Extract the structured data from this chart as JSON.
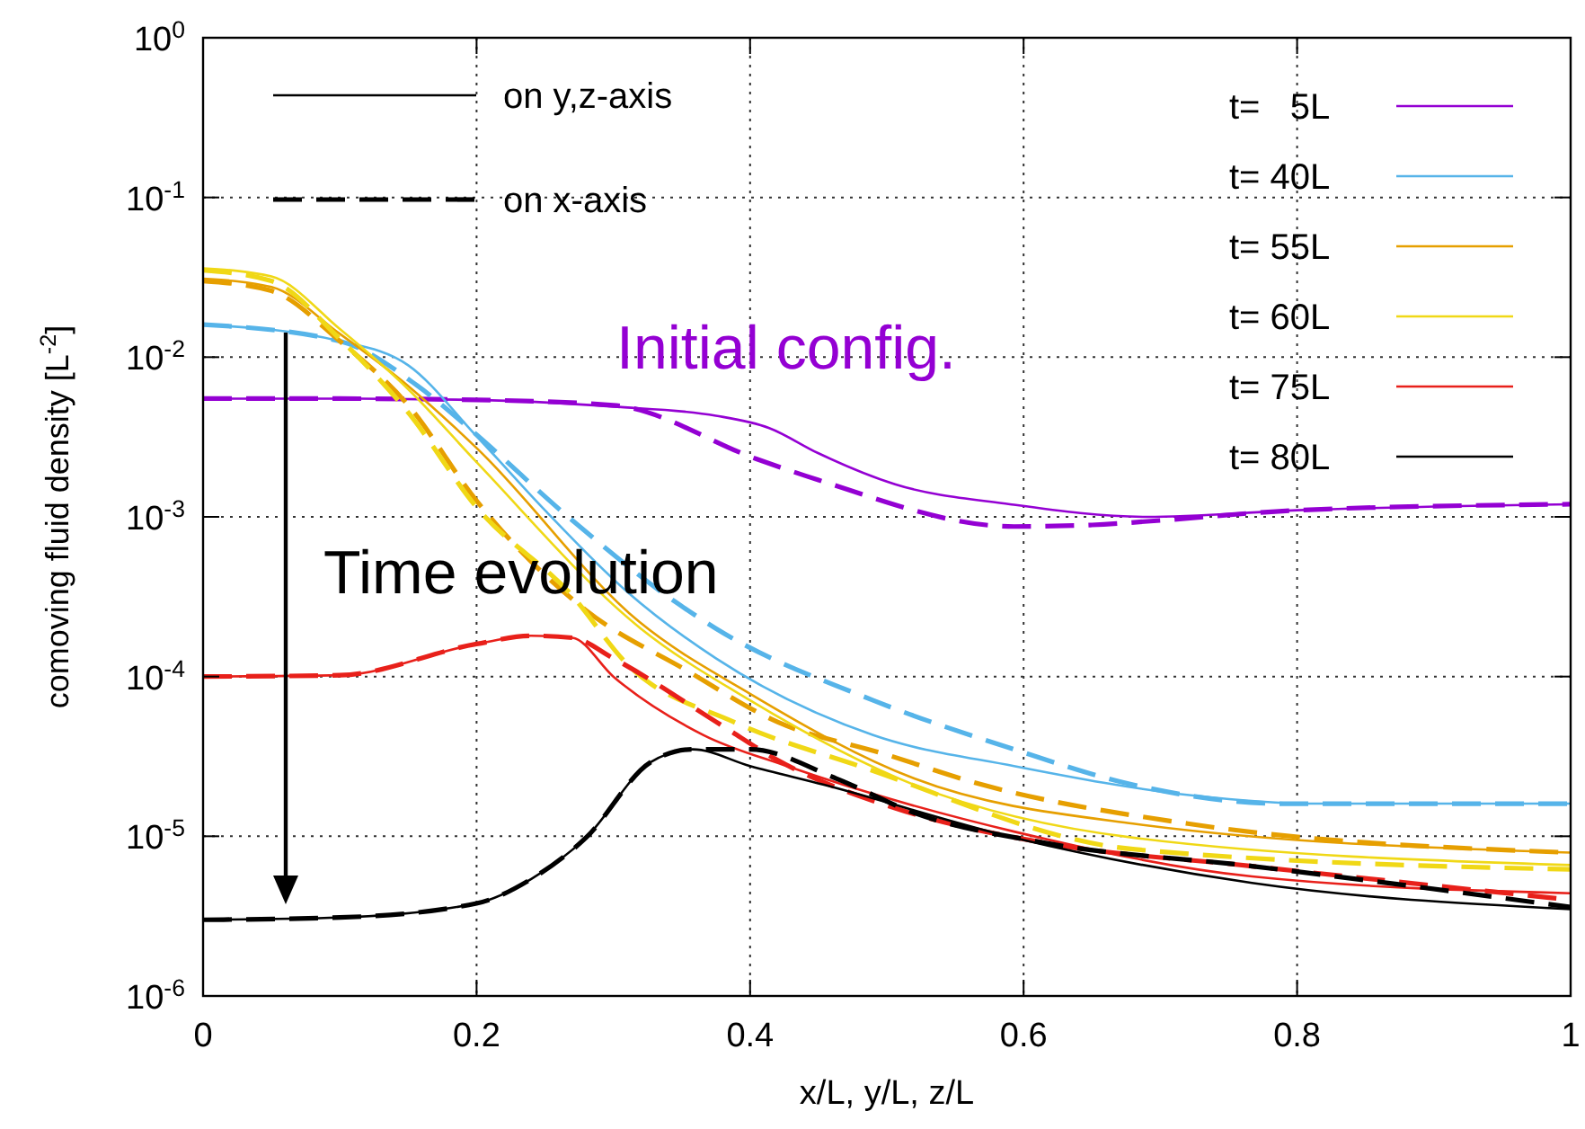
{
  "chart_data": {
    "type": "line",
    "xlabel": "x/L, y/L, z/L",
    "ylabel": "comoving fluid density [L$^{-2}$]",
    "xlim": [
      0,
      1
    ],
    "xticks": [
      0,
      0.2,
      0.4,
      0.6,
      0.8,
      1
    ],
    "ylim": [
      1e-06,
      1
    ],
    "yticks": [
      {
        "value": 1e-06,
        "label": "10$^{-6}$"
      },
      {
        "value": 1e-05,
        "label": "10$^{-5}$"
      },
      {
        "value": 0.0001,
        "label": "10$^{-4}$"
      },
      {
        "value": 0.001,
        "label": "10$^{-3}$"
      },
      {
        "value": 0.01,
        "label": "10$^{-2}$"
      },
      {
        "value": 0.1,
        "label": "10$^{-1}$"
      },
      {
        "value": 1,
        "label": "10$^{0}$"
      }
    ],
    "log": "y",
    "grid": true,
    "legend": "top right",
    "marker": "none",
    "annotations": [
      "on y,z-axis",
      "on x-axis",
      "Initial config.",
      "Time evolution"
    ],
    "series": [
      {
        "name": "t=   5L",
        "color": "#9400d3",
        "line_style": "solid",
        "x": [
          0,
          0.1,
          0.2,
          0.3,
          0.375,
          0.414,
          0.45,
          0.506,
          0.59,
          0.69,
          0.8,
          1
        ],
        "values": [
          0.0055,
          0.0055,
          0.0054,
          0.0049,
          0.0043,
          0.0036,
          0.0025,
          0.0016,
          0.0012,
          0.001,
          0.0011,
          0.0012
        ]
      },
      {
        "color": "#9400d3",
        "line_style": "dashed",
        "x": [
          0,
          0.1,
          0.2,
          0.3,
          0.405,
          0.45,
          0.593,
          0.65,
          0.7,
          0.8,
          1
        ],
        "values": [
          0.0055,
          0.0055,
          0.0054,
          0.005,
          0.0023,
          0.0017,
          0.00087,
          0.00089,
          0.00095,
          0.0011,
          0.0012
        ]
      },
      {
        "name": "t= 40L",
        "color": "#56b4e9",
        "line_style": "solid",
        "x": [
          0,
          0.1,
          0.15,
          0.2,
          0.25,
          0.31,
          0.375,
          0.49,
          0.593,
          0.724,
          0.81,
          1
        ],
        "values": [
          0.016,
          0.0126,
          0.0089,
          0.0032,
          0.0011,
          0.00034,
          0.00013,
          4.3e-05,
          2.75e-05,
          1.8e-05,
          1.6e-05,
          1.6e-05
        ]
      },
      {
        "color": "#56b4e9",
        "line_style": "dashed",
        "x": [
          0,
          0.1,
          0.157,
          0.196,
          0.267,
          0.345,
          0.375,
          0.49,
          0.593,
          0.68,
          0.79,
          1
        ],
        "values": [
          0.016,
          0.0126,
          0.0066,
          0.0035,
          0.001,
          0.000295,
          0.0002,
          7.1e-05,
          3.5e-05,
          2.1e-05,
          1.6e-05,
          1.6e-05
        ]
      },
      {
        "name": "t= 55L",
        "color": "#e69f00",
        "line_style": "solid",
        "x": [
          0,
          0.05,
          0.1,
          0.15,
          0.2,
          0.319,
          0.4,
          0.52,
          0.68,
          1
        ],
        "values": [
          0.031,
          0.0275,
          0.014,
          0.0066,
          0.0027,
          0.00022,
          7.8e-05,
          2.3e-05,
          1.2e-05,
          7.9e-06
        ]
      },
      {
        "color": "#e69f00",
        "line_style": "dashed",
        "x": [
          0,
          0.05,
          0.1,
          0.15,
          0.2,
          0.28,
          0.353,
          0.42,
          0.497,
          0.57,
          0.72,
          1
        ],
        "values": [
          0.03,
          0.026,
          0.0126,
          0.005,
          0.00126,
          0.00026,
          0.00011,
          5.2e-05,
          3.3e-05,
          2.1e-05,
          1.2e-05,
          7.9e-06
        ]
      },
      {
        "name": "t= 60L",
        "color": "#f0d816",
        "line_style": "solid",
        "x": [
          0,
          0.05,
          0.1,
          0.15,
          0.2,
          0.32,
          0.4,
          0.52,
          0.68,
          1
        ],
        "values": [
          0.036,
          0.032,
          0.015,
          0.0063,
          0.0022,
          0.0002,
          7.1e-05,
          2.1e-05,
          9.8e-06,
          6.6e-06
        ]
      },
      {
        "color": "#f0d816",
        "line_style": "dashed",
        "x": [
          0,
          0.05,
          0.1,
          0.15,
          0.2,
          0.27,
          0.31,
          0.388,
          0.48,
          0.68,
          1
        ],
        "values": [
          0.035,
          0.03,
          0.013,
          0.0045,
          0.00115,
          0.00032,
          0.00012,
          5.2e-05,
          2.75e-05,
          8.3e-06,
          6.2e-06
        ]
      },
      {
        "name": "t= 75L",
        "color": "#e8201a",
        "line_style": "solid",
        "x": [
          0,
          0.1,
          0.2,
          0.24,
          0.27,
          0.3,
          0.366,
          0.427,
          0.593,
          0.767,
          1
        ],
        "values": [
          0.0001,
          0.000102,
          0.00016,
          0.00018,
          0.000175,
          0.0001,
          4.3e-05,
          2.75e-05,
          1.07e-05,
          5.6e-06,
          4.4e-06
        ]
      },
      {
        "color": "#e8201a",
        "line_style": "dashed",
        "x": [
          0,
          0.1,
          0.2,
          0.24,
          0.27,
          0.3,
          0.38,
          0.42,
          0.506,
          0.615,
          0.767,
          1
        ],
        "values": [
          0.0001,
          0.000102,
          0.00016,
          0.00018,
          0.000175,
          0.00013,
          4.9e-05,
          3e-05,
          1.5e-05,
          9.1e-06,
          6.5e-06,
          4e-06
        ]
      },
      {
        "name": "t= 80L",
        "color": "#000000",
        "line_style": "solid",
        "x": [
          0,
          0.1,
          0.2,
          0.24,
          0.28,
          0.327,
          0.358,
          0.4,
          0.454,
          0.593,
          0.767,
          1
        ],
        "values": [
          3e-06,
          3.1e-06,
          3.8e-06,
          5.4e-06,
          9.8e-06,
          2.9e-05,
          3.5e-05,
          2.75e-05,
          2.1e-05,
          9.8e-06,
          5.1e-06,
          3.5e-06
        ]
      },
      {
        "color": "#000000",
        "line_style": "dashed",
        "x": [
          0,
          0.1,
          0.2,
          0.24,
          0.28,
          0.327,
          0.358,
          0.4,
          0.463,
          0.52,
          0.615,
          0.767,
          1
        ],
        "values": [
          3e-06,
          3.1e-06,
          3.8e-06,
          5.4e-06,
          9.8e-06,
          2.9e-05,
          3.5e-05,
          3.5e-05,
          2.3e-05,
          1.4e-05,
          9.1e-06,
          6.5e-06,
          3.6e-06
        ]
      }
    ]
  }
}
